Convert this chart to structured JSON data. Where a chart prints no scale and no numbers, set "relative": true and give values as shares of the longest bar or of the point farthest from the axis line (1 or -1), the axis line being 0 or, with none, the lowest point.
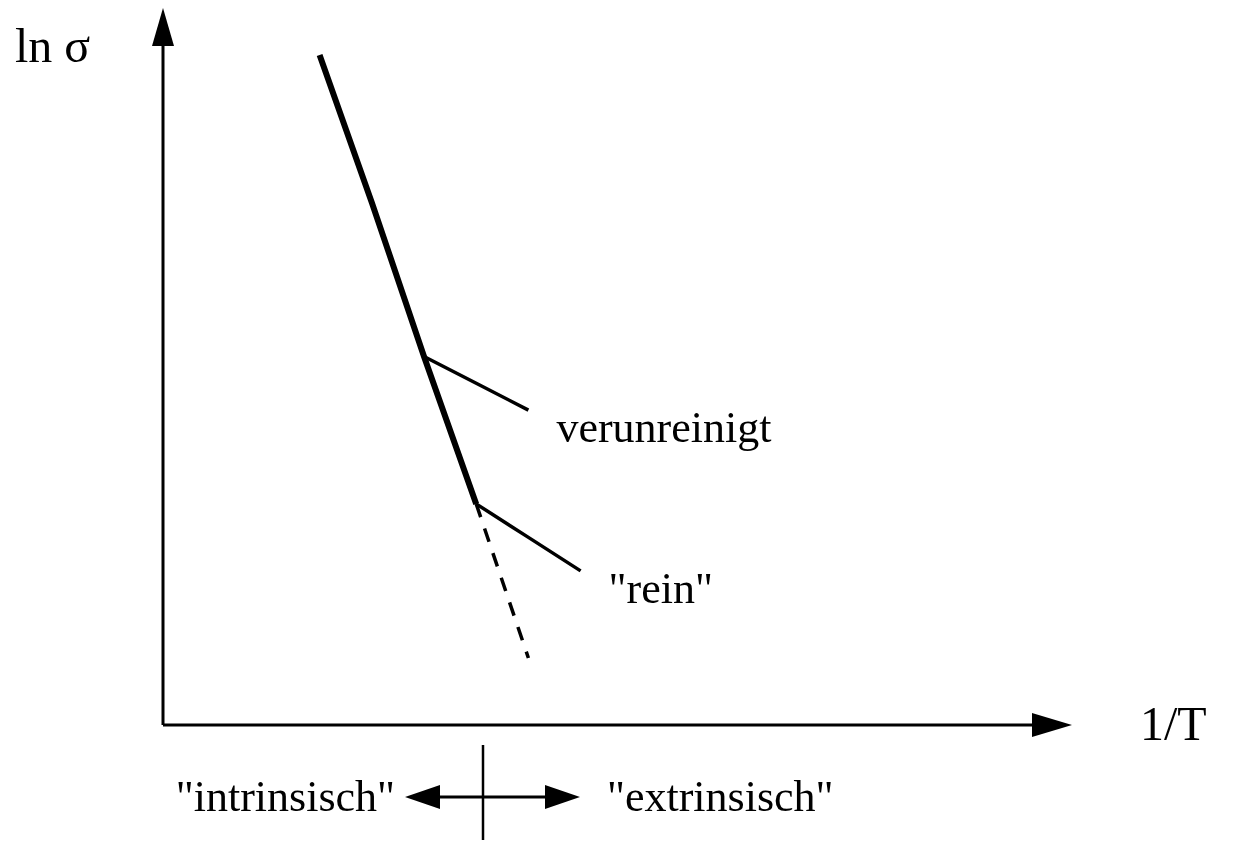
{
  "chart_data": {
    "type": "line",
    "relative": true,
    "xlabel": "1/T",
    "ylabel": "ln σ",
    "categories": [
      null,
      null,
      null,
      null,
      null,
      null,
      null,
      null,
      null,
      null,
      null,
      null,
      null,
      null,
      null,
      null,
      null
    ],
    "series": [
      {
        "color": "#000000",
        "values": [
          null,
          null,
          null,
          1.0,
          0.78,
          0.55,
          0.33,
          null,
          null,
          null,
          null,
          null,
          null,
          null,
          null,
          null,
          null
        ]
      },
      {
        "color": "#000000",
        "line_style": "dashed",
        "values": [
          null,
          null,
          null,
          null,
          null,
          null,
          0.33,
          0.1,
          null,
          null,
          null,
          null,
          null,
          null,
          null,
          null,
          null
        ]
      },
      {
        "name": "verunreinigt",
        "color": "#000000",
        "values": [
          null,
          null,
          null,
          null,
          null,
          0.55,
          0.51,
          0.47,
          null,
          null,
          null,
          null,
          null,
          null,
          null,
          null,
          null
        ]
      },
      {
        "name": "\"rein\"",
        "color": "#000000",
        "values": [
          null,
          null,
          null,
          null,
          null,
          null,
          0.33,
          0.28,
          0.23,
          null,
          null,
          null,
          null,
          null,
          null,
          null,
          null
        ]
      }
    ],
    "annotations": [
      "\"intrinsisch\"",
      "\"extrinsisch\""
    ]
  }
}
